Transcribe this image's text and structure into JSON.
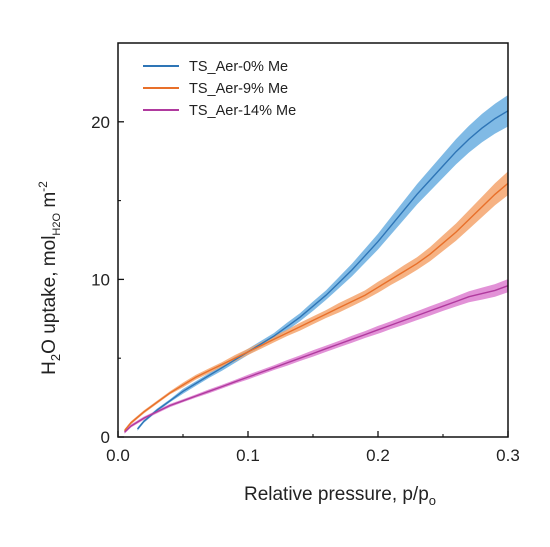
{
  "chart_data": {
    "type": "line",
    "xlabel": "Relative pressure, p/p",
    "xlabel_sub": "o",
    "ylabel_parts": {
      "h": "H",
      "two": "2",
      "o_uptake": "O uptake, mol",
      "h2o": "H2O",
      "m": " m",
      "exp": "-2"
    },
    "xlim": [
      0.0,
      0.3
    ],
    "ylim": [
      0,
      25
    ],
    "x_ticks": [
      "0.0",
      "0.1",
      "0.2",
      "0.3"
    ],
    "y_ticks": [
      "0",
      "10",
      "20"
    ],
    "legend_position": "top-left",
    "series": [
      {
        "name": "TS_Aer-0% Me",
        "color": "#2e75b6",
        "band_color": "#6aaee0",
        "x": [
          0.015,
          0.02,
          0.03,
          0.04,
          0.05,
          0.06,
          0.07,
          0.08,
          0.09,
          0.1,
          0.11,
          0.12,
          0.13,
          0.14,
          0.15,
          0.16,
          0.17,
          0.18,
          0.19,
          0.2,
          0.21,
          0.22,
          0.23,
          0.24,
          0.25,
          0.26,
          0.27,
          0.28,
          0.29,
          0.3
        ],
        "values": [
          0.5,
          1.0,
          1.7,
          2.3,
          2.9,
          3.4,
          3.9,
          4.4,
          4.9,
          5.4,
          5.9,
          6.4,
          7.0,
          7.6,
          8.3,
          9.0,
          9.8,
          10.6,
          11.5,
          12.4,
          13.4,
          14.4,
          15.4,
          16.3,
          17.2,
          18.1,
          18.9,
          19.6,
          20.2,
          20.7
        ],
        "band": [
          0.1,
          0.1,
          0.1,
          0.1,
          0.15,
          0.15,
          0.15,
          0.2,
          0.2,
          0.2,
          0.2,
          0.2,
          0.25,
          0.25,
          0.3,
          0.3,
          0.35,
          0.4,
          0.45,
          0.5,
          0.55,
          0.6,
          0.65,
          0.7,
          0.75,
          0.8,
          0.85,
          0.9,
          0.95,
          1.0
        ]
      },
      {
        "name": "TS_Aer-9% Me",
        "color": "#e8702a",
        "band_color": "#f5a56d",
        "x": [
          0.005,
          0.01,
          0.02,
          0.03,
          0.04,
          0.05,
          0.06,
          0.07,
          0.08,
          0.09,
          0.1,
          0.11,
          0.12,
          0.13,
          0.14,
          0.15,
          0.16,
          0.17,
          0.18,
          0.19,
          0.2,
          0.21,
          0.22,
          0.23,
          0.24,
          0.25,
          0.26,
          0.27,
          0.28,
          0.29,
          0.3
        ],
        "values": [
          0.4,
          0.9,
          1.6,
          2.2,
          2.8,
          3.3,
          3.8,
          4.2,
          4.6,
          5.0,
          5.4,
          5.8,
          6.2,
          6.6,
          7.0,
          7.4,
          7.8,
          8.2,
          8.6,
          9.0,
          9.5,
          10.0,
          10.5,
          11.0,
          11.6,
          12.3,
          13.0,
          13.8,
          14.6,
          15.4,
          16.1
        ],
        "band": [
          0.1,
          0.1,
          0.1,
          0.1,
          0.1,
          0.15,
          0.15,
          0.15,
          0.15,
          0.2,
          0.2,
          0.2,
          0.2,
          0.2,
          0.25,
          0.25,
          0.25,
          0.3,
          0.3,
          0.3,
          0.35,
          0.35,
          0.4,
          0.4,
          0.45,
          0.5,
          0.55,
          0.6,
          0.65,
          0.7,
          0.75
        ]
      },
      {
        "name": "TS_Aer-14% Me",
        "color": "#b03a9e",
        "band_color": "#dd7fd0",
        "x": [
          0.005,
          0.01,
          0.02,
          0.03,
          0.04,
          0.05,
          0.06,
          0.07,
          0.08,
          0.09,
          0.1,
          0.11,
          0.12,
          0.13,
          0.14,
          0.15,
          0.16,
          0.17,
          0.18,
          0.19,
          0.2,
          0.21,
          0.22,
          0.23,
          0.24,
          0.25,
          0.26,
          0.27,
          0.28,
          0.29,
          0.3
        ],
        "values": [
          0.3,
          0.7,
          1.2,
          1.6,
          2.0,
          2.3,
          2.6,
          2.9,
          3.2,
          3.5,
          3.8,
          4.1,
          4.4,
          4.7,
          5.0,
          5.3,
          5.6,
          5.9,
          6.2,
          6.5,
          6.8,
          7.1,
          7.4,
          7.7,
          8.0,
          8.3,
          8.6,
          8.9,
          9.1,
          9.3,
          9.6
        ],
        "band": [
          0.1,
          0.1,
          0.1,
          0.1,
          0.1,
          0.1,
          0.1,
          0.12,
          0.12,
          0.12,
          0.15,
          0.15,
          0.15,
          0.18,
          0.18,
          0.2,
          0.2,
          0.2,
          0.22,
          0.22,
          0.25,
          0.25,
          0.28,
          0.28,
          0.3,
          0.3,
          0.32,
          0.35,
          0.38,
          0.4,
          0.42
        ]
      }
    ]
  }
}
